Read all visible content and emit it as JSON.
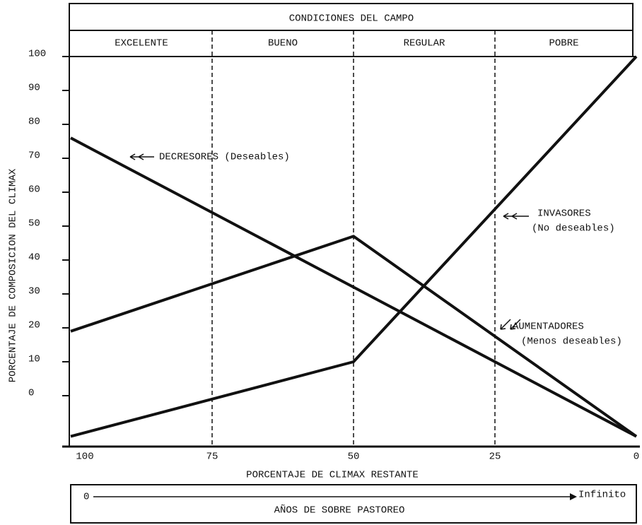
{
  "chart_data": {
    "type": "line",
    "header": "CONDICIONES DEL CAMPO",
    "conditions": [
      "EXCELENTE",
      "BUENO",
      "REGULAR",
      "POBRE"
    ],
    "x_label": "PORCENTAJE DE CLIMAX RESTANTE",
    "y_label": "PORCENTAJE DE COMPOSICION DEL CLIMAX",
    "x": [
      100,
      50,
      0
    ],
    "xlim": [
      100,
      0
    ],
    "xticks": [
      100,
      75,
      50,
      25,
      0
    ],
    "ylim": [
      -15,
      100
    ],
    "yticks": [
      0,
      10,
      20,
      30,
      40,
      50,
      60,
      70,
      80,
      90,
      100
    ],
    "series": [
      {
        "name": "DECRESORES (Deseables)",
        "color": "#111111",
        "values": [
          76,
          32,
          -12
        ]
      },
      {
        "name": "AUMENTADORES",
        "note": "(Menos deseables)",
        "color": "#111111",
        "values": [
          19,
          47,
          -12
        ]
      },
      {
        "name": "INVASORES",
        "note": "(No deseables)",
        "color": "#111111",
        "values": [
          -12,
          10,
          100
        ]
      }
    ],
    "time_axis": {
      "start": "0",
      "end": "Infinito",
      "label": "AÑOS DE SOBRE PASTOREO"
    }
  }
}
